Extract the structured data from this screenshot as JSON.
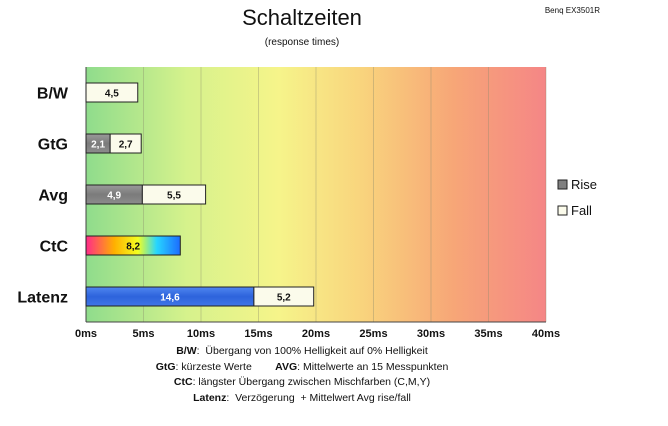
{
  "header": {
    "title": "Schaltzeiten",
    "subtitle": "(response times)",
    "model": "Benq EX3501R"
  },
  "notes": [
    {
      "parts": [
        {
          "k": "B/W",
          "t": ":  Übergang von 100% Helligkeit auf 0% Helligkeit"
        }
      ]
    },
    {
      "parts": [
        {
          "k": "GtG",
          "t": ": kürzeste Werte        "
        },
        {
          "k": "AVG",
          "t": ": Mittelwerte an 15 Messpunkten"
        }
      ]
    },
    {
      "parts": [
        {
          "k": "CtC",
          "t": ": längster Übergang zwischen Mischfarben (C,M,Y)"
        }
      ]
    },
    {
      "parts": [
        {
          "k": "Latenz",
          "t": ":  Verzögerung  + Mittelwert Avg rise/fall"
        }
      ]
    }
  ],
  "colors": {
    "rise": "#808080",
    "fall": "#fbfbeb",
    "latenz_rise": "#3a6fe0",
    "bar_border": "#222222"
  },
  "chart_data": {
    "type": "bar",
    "orientation": "horizontal",
    "stacked": true,
    "title": "Schaltzeiten",
    "subtitle": "(response times)",
    "categories": [
      "B/W",
      "GtG",
      "Avg",
      "CtC",
      "Latenz"
    ],
    "x_tick_labels": [
      "0ms",
      "5ms",
      "10ms",
      "15ms",
      "20ms",
      "25ms",
      "30ms",
      "35ms",
      "40ms"
    ],
    "xlim": [
      0,
      40
    ],
    "grid": true,
    "legend_position": "right",
    "series": [
      {
        "name": "Rise",
        "values": [
          null,
          2.1,
          4.9,
          null,
          14.6
        ],
        "labels": [
          "",
          "2,1",
          "4,9",
          "",
          "14,6"
        ]
      },
      {
        "name": "Fall",
        "values": [
          4.5,
          2.7,
          5.5,
          null,
          5.2
        ],
        "labels": [
          "4,5",
          "2,7",
          "5,5",
          "",
          "5,2"
        ]
      },
      {
        "name": "",
        "values": [
          null,
          null,
          null,
          8.2,
          null
        ],
        "labels": [
          "",
          "",
          "",
          "8,2",
          ""
        ]
      }
    ]
  }
}
